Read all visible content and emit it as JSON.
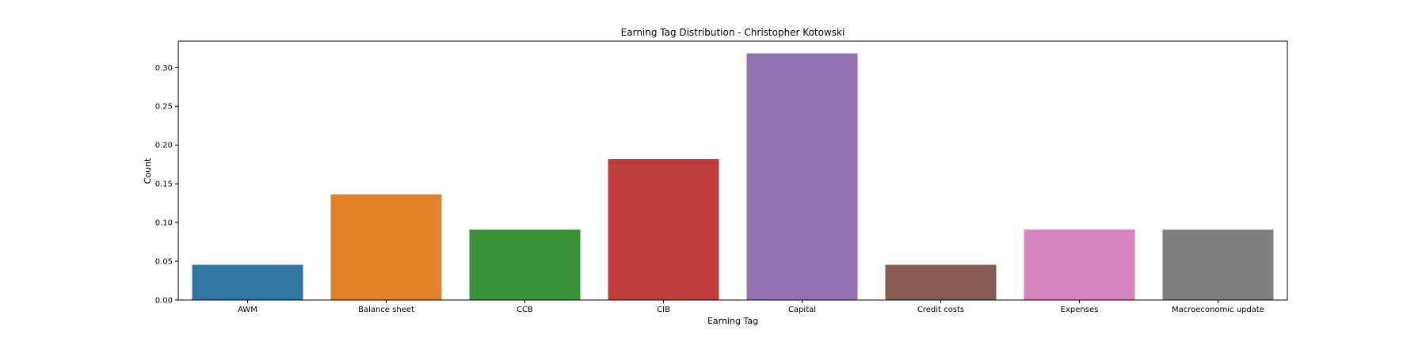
{
  "chart_data": {
    "type": "bar",
    "title": "Earning Tag Distribution - Christopher Kotowski",
    "xlabel": "Earning Tag",
    "ylabel": "Count",
    "categories": [
      "AWM",
      "Balance sheet",
      "CCB",
      "CIB",
      "Capital",
      "Credit costs",
      "Expenses",
      "Macroeconomic update"
    ],
    "values": [
      0.0455,
      0.1364,
      0.0909,
      0.1818,
      0.3182,
      0.0455,
      0.0909,
      0.0909
    ],
    "colors": [
      "#3274a1",
      "#e1812c",
      "#3a923a",
      "#c03d3e",
      "#9372b2",
      "#845b53",
      "#d684bd",
      "#7f7f7f"
    ],
    "ylim": [
      0,
      0.334
    ],
    "yticks": [
      0.0,
      0.05,
      0.1,
      0.15,
      0.2,
      0.25,
      0.3
    ],
    "ytick_labels": [
      "0.00",
      "0.05",
      "0.10",
      "0.15",
      "0.20",
      "0.25",
      "0.30"
    ],
    "grid": false,
    "legend": "none"
  }
}
